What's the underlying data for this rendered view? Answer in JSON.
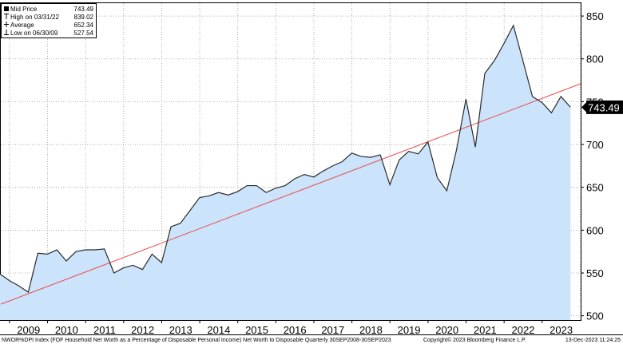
{
  "chart_data": {
    "type": "area",
    "title": "",
    "xlabel": "",
    "ylabel": "",
    "ylim": [
      495,
      865
    ],
    "x_ticks": [
      "2009",
      "2010",
      "2011",
      "2012",
      "2013",
      "2014",
      "2015",
      "2016",
      "2017",
      "2018",
      "2019",
      "2020",
      "2021",
      "2022",
      "2023"
    ],
    "y_ticks": [
      500,
      550,
      600,
      650,
      700,
      750,
      800,
      850
    ],
    "grid": true,
    "legend_position": "top-left",
    "legend": [
      {
        "label": "Mid Price",
        "value": "743.49"
      },
      {
        "label": "High on 03/31/22",
        "value": "839.02"
      },
      {
        "label": "Average",
        "value": "652.34"
      },
      {
        "label": "Low on 06/30/09",
        "value": "527.54"
      }
    ],
    "last_value_label": "743.49",
    "x": [
      "2008-09-30",
      "2008-12-31",
      "2009-03-31",
      "2009-06-30",
      "2009-09-30",
      "2009-12-31",
      "2010-03-31",
      "2010-06-30",
      "2010-09-30",
      "2010-12-31",
      "2011-03-31",
      "2011-06-30",
      "2011-09-30",
      "2011-12-31",
      "2012-03-31",
      "2012-06-30",
      "2012-09-30",
      "2012-12-31",
      "2013-03-31",
      "2013-06-30",
      "2013-09-30",
      "2013-12-31",
      "2014-03-31",
      "2014-06-30",
      "2014-09-30",
      "2014-12-31",
      "2015-03-31",
      "2015-06-30",
      "2015-09-30",
      "2015-12-31",
      "2016-03-31",
      "2016-06-30",
      "2016-09-30",
      "2016-12-31",
      "2017-03-31",
      "2017-06-30",
      "2017-09-30",
      "2017-12-31",
      "2018-03-31",
      "2018-06-30",
      "2018-09-30",
      "2018-12-31",
      "2019-03-31",
      "2019-06-30",
      "2019-09-30",
      "2019-12-31",
      "2020-03-31",
      "2020-06-30",
      "2020-09-30",
      "2020-12-31",
      "2021-03-31",
      "2021-06-30",
      "2021-09-30",
      "2021-12-31",
      "2022-03-31",
      "2022-06-30",
      "2022-09-30",
      "2022-12-31",
      "2023-03-31",
      "2023-06-30",
      "2023-09-30"
    ],
    "series": [
      {
        "name": "Mid Price",
        "type": "area",
        "color": "#2b2b2b",
        "fill": "#cce4fb",
        "values": [
          549,
          541,
          535,
          527.54,
          573,
          572,
          577,
          564,
          575,
          577,
          577,
          578,
          550,
          556,
          559,
          554,
          572,
          562,
          604,
          608,
          623,
          638,
          640,
          644,
          641,
          645,
          652,
          652,
          644,
          649,
          652,
          660,
          665,
          662,
          669,
          675,
          680,
          690,
          686,
          685,
          688,
          653,
          682,
          692,
          689,
          703,
          661,
          646,
          693,
          753,
          697,
          783,
          798,
          818,
          839.02,
          798,
          756,
          749,
          737,
          756,
          743.49
        ]
      },
      {
        "name": "Trend",
        "type": "line",
        "color": "#e94b4b",
        "values_from_to": [
          513.5,
          771
        ]
      }
    ]
  },
  "footer": {
    "left": "NWOR%DPI Index (FOF Household Net Worth as a Percentage of Disposable Personal Income) Net Worth to Disposable  Quarterly 30SEP2008-30SEP2023",
    "center": "Copyright© 2023 Bloomberg Finance L.P.",
    "right": "13-Dec-2023 11:24:25"
  },
  "colors": {
    "area_fill": "#cce4fb",
    "line": "#2b2b2b",
    "trend": "#e94b4b",
    "grid": "#9a9a9a",
    "last_box": "#000000"
  }
}
